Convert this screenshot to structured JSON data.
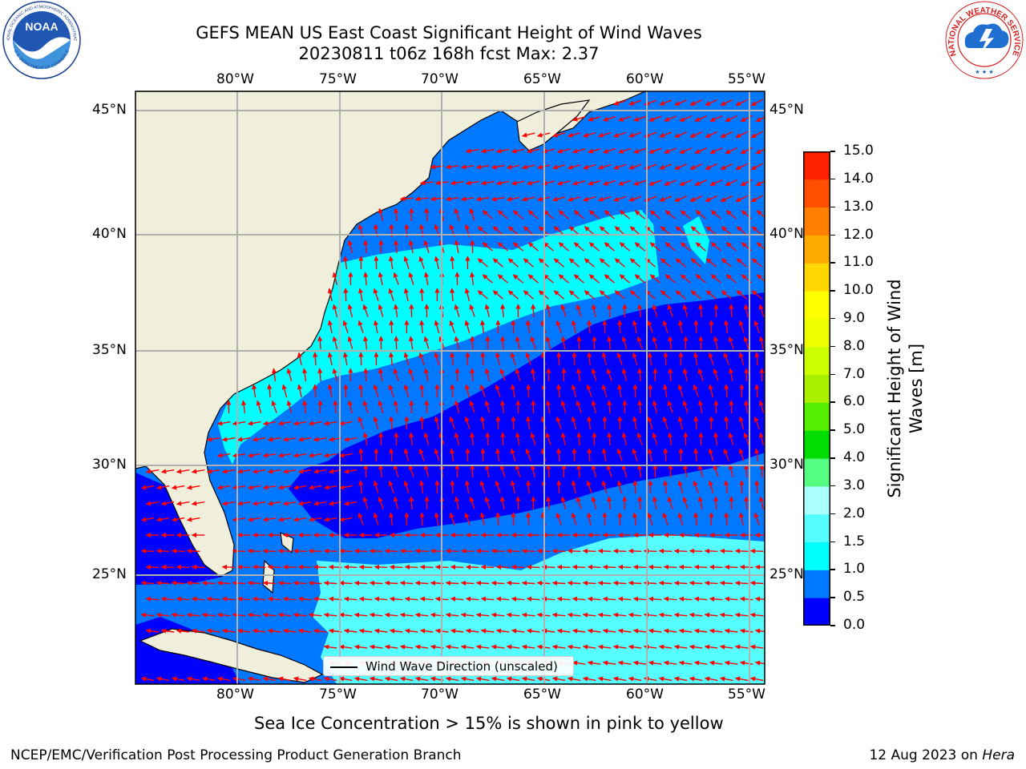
{
  "header": {
    "title_line1": "GEFS MEAN US East Coast Significant Height of Wind Waves",
    "title_line2": "20230811 t06z 168h fcst   Max: 2.37"
  },
  "logos": {
    "noaa_text": "NOAA",
    "noaa_ring_top": "NATIONAL OCEANIC AND ATMOSPHERIC ADMINISTRATION",
    "noaa_ring_bottom": "U.S. DEPARTMENT OF COMMERCE",
    "nws_ring": "NATIONAL WEATHER SERVICE"
  },
  "map": {
    "lon_labels": [
      "80°W",
      "75°W",
      "70°W",
      "65°W",
      "60°W",
      "55°W"
    ],
    "lat_labels": [
      "45°N",
      "40°N",
      "35°N",
      "30°N",
      "25°N"
    ],
    "lon_range": [
      -85,
      -54.3
    ],
    "lat_range": [
      20.5,
      46
    ],
    "legend_label": "Wind Wave Direction (unscaled)",
    "land_color": "#efefdc",
    "arrow_color": "#ff0000",
    "grid": true
  },
  "colorbar": {
    "label": "Significant Height of Wind Waves [m]",
    "label_line1": "Significant Height of Wind",
    "label_line2": "Waves [m]",
    "ticks": [
      "15.0",
      "14.0",
      "13.0",
      "12.0",
      "11.0",
      "10.0",
      "9.0",
      "8.0",
      "7.0",
      "6.0",
      "5.0",
      "4.0",
      "3.0",
      "2.0",
      "1.5",
      "1.0",
      "0.5",
      "0.0"
    ],
    "levels": [
      0,
      0.5,
      1,
      1.5,
      2,
      3,
      4,
      5,
      6,
      7,
      8,
      9,
      10,
      11,
      12,
      13,
      14,
      15
    ],
    "colors": [
      "#0000ff",
      "#0078ff",
      "#00ffff",
      "#55ffff",
      "#aaffff",
      "#55ff80",
      "#00dd00",
      "#55ee00",
      "#aaee00",
      "#ccff00",
      "#eeff00",
      "#ffff00",
      "#ffd700",
      "#ffaa00",
      "#ff8000",
      "#ff5000",
      "#ff2000"
    ]
  },
  "footer": {
    "note": "Sea Ice Concentration > 15% is shown in pink to yellow",
    "left": "NCEP/EMC/Verification Post Processing Product Generation Branch",
    "right_prefix": "12 Aug 2023 on ",
    "right_machine": "Hera"
  }
}
